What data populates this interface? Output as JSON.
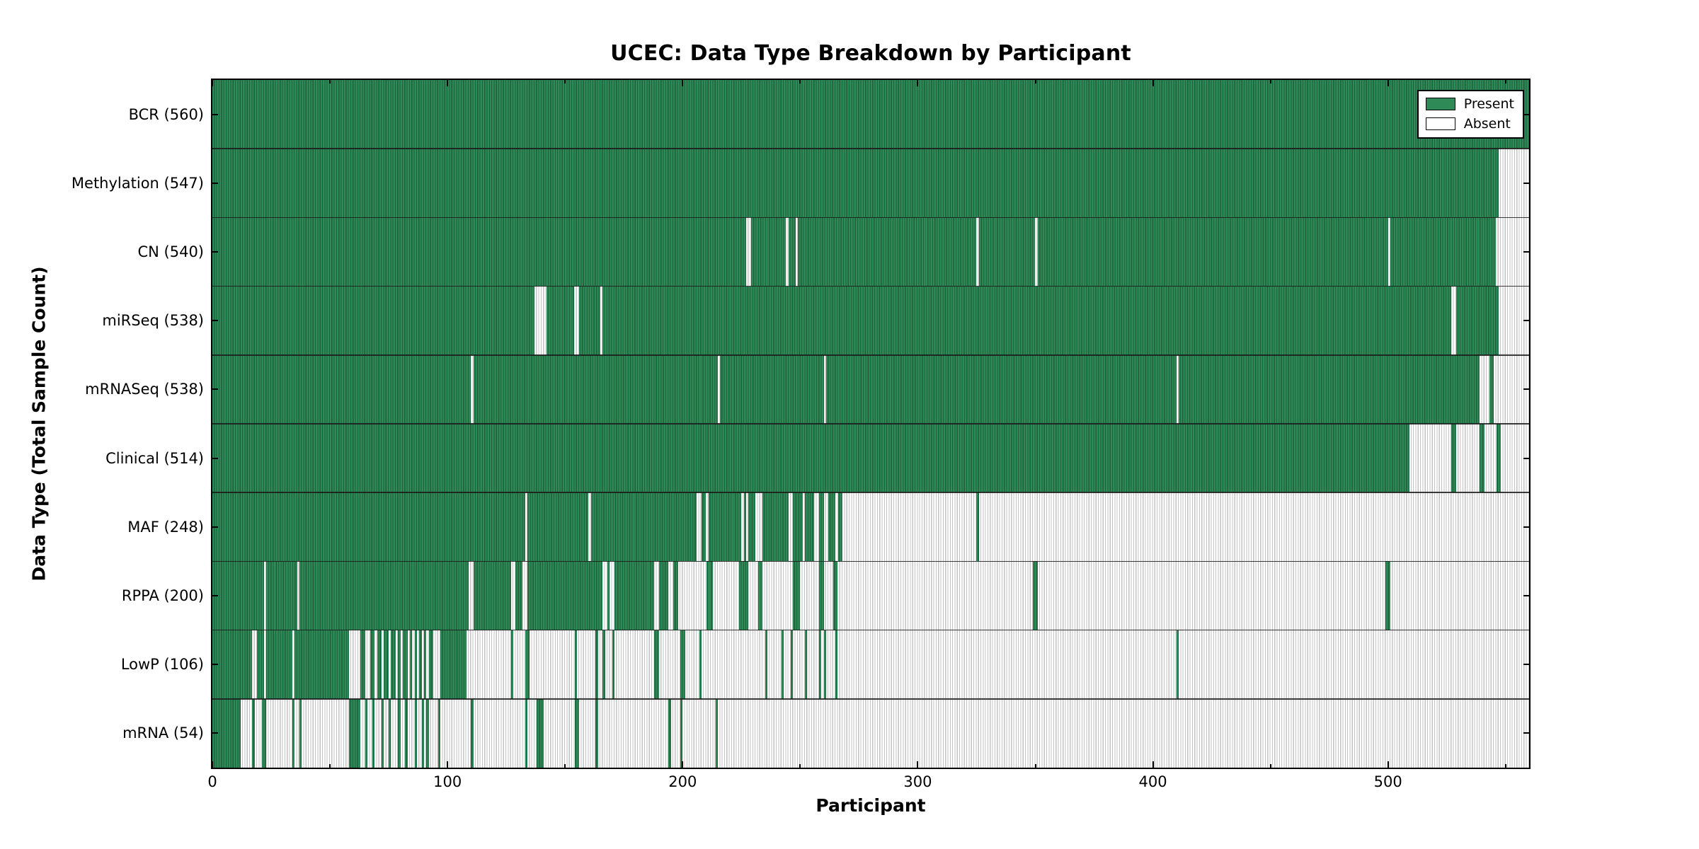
{
  "title": "UCEC: Data Type Breakdown by Participant",
  "legend": {
    "present_label": "Present",
    "absent_label": "Absent"
  },
  "axes": {
    "xlabel": "Participant",
    "ylabel": "Data Type (Total Sample Count)",
    "x_ticks": [
      0,
      100,
      200,
      300,
      400,
      500
    ],
    "x_minor_ticks": [
      50,
      150,
      250,
      350,
      450,
      550
    ],
    "x_max": 560
  },
  "colors": {
    "present": "#2e8b57",
    "present_stripe": "#1f5f3c",
    "absent": "#ffffff",
    "absent_stripe": "#c3c3c3",
    "separator": "#1a1a1a",
    "axis": "#000000",
    "text": "#000000"
  },
  "chart_data": {
    "type": "heatmap",
    "title": "UCEC: Data Type Breakdown by Participant",
    "xlabel": "Participant",
    "ylabel": "Data Type (Total Sample Count)",
    "x_range": [
      0,
      560
    ],
    "x_ticks": [
      0,
      100,
      200,
      300,
      400,
      500
    ],
    "legend_entries": [
      "Present",
      "Absent"
    ],
    "legend_position": "upper right",
    "grid": false,
    "value_encoding": {
      "present": "green cell",
      "absent": "white cell"
    },
    "rows": [
      {
        "label": "BCR (560)",
        "name": "BCR",
        "total": 560,
        "present_runs": [
          [
            0,
            560
          ]
        ]
      },
      {
        "label": "Methylation (547)",
        "name": "Methylation",
        "total": 547,
        "present_runs": [
          [
            0,
            547
          ]
        ]
      },
      {
        "label": "CN (540)",
        "name": "CN",
        "total": 540,
        "present_runs": [
          [
            0,
            227
          ],
          [
            229,
            244
          ],
          [
            245,
            248
          ],
          [
            249,
            325
          ],
          [
            326,
            350
          ],
          [
            351,
            500
          ],
          [
            501,
            546
          ]
        ]
      },
      {
        "label": "miRSeq (538)",
        "name": "miRSeq",
        "total": 538,
        "present_runs": [
          [
            0,
            137
          ],
          [
            142,
            154
          ],
          [
            156,
            165
          ],
          [
            166,
            527
          ],
          [
            529,
            547
          ]
        ]
      },
      {
        "label": "mRNASeq (538)",
        "name": "mRNASeq",
        "total": 538,
        "present_runs": [
          [
            0,
            110
          ],
          [
            111,
            215
          ],
          [
            216,
            260
          ],
          [
            261,
            410
          ],
          [
            411,
            539
          ],
          [
            543,
            545
          ]
        ]
      },
      {
        "label": "Clinical (514)",
        "name": "Clinical",
        "total": 514,
        "present_runs": [
          [
            0,
            509
          ],
          [
            527,
            529
          ],
          [
            539,
            541
          ],
          [
            546,
            548
          ]
        ]
      },
      {
        "label": "MAF (248)",
        "name": "MAF",
        "total": 248,
        "present_runs": [
          [
            0,
            133
          ],
          [
            134,
            160
          ],
          [
            161,
            206
          ],
          [
            208,
            210
          ],
          [
            211,
            225
          ],
          [
            226,
            227
          ],
          [
            228,
            231
          ],
          [
            234,
            245
          ],
          [
            247,
            251
          ],
          [
            252,
            256
          ],
          [
            258,
            260
          ],
          [
            262,
            265
          ],
          [
            266,
            268
          ],
          [
            325,
            326
          ]
        ]
      },
      {
        "label": "RPPA (200)",
        "name": "RPPA",
        "total": 200,
        "present_runs": [
          [
            0,
            22
          ],
          [
            23,
            36
          ],
          [
            37,
            109
          ],
          [
            111,
            127
          ],
          [
            129,
            132
          ],
          [
            134,
            166
          ],
          [
            168,
            169
          ],
          [
            171,
            188
          ],
          [
            190,
            194
          ],
          [
            196,
            198
          ],
          [
            210,
            213
          ],
          [
            224,
            228
          ],
          [
            232,
            234
          ],
          [
            247,
            250
          ],
          [
            258,
            260
          ],
          [
            264,
            266
          ],
          [
            349,
            351
          ],
          [
            499,
            501
          ]
        ]
      },
      {
        "label": "LowP (106)",
        "name": "LowP",
        "total": 106,
        "present_runs": [
          [
            0,
            17
          ],
          [
            19,
            22
          ],
          [
            23,
            34
          ],
          [
            35,
            58
          ],
          [
            63,
            65
          ],
          [
            67,
            69
          ],
          [
            70,
            72
          ],
          [
            73,
            75
          ],
          [
            76,
            78
          ],
          [
            79,
            80
          ],
          [
            81,
            83
          ],
          [
            84,
            85
          ],
          [
            86,
            87
          ],
          [
            88,
            89
          ],
          [
            90,
            91
          ],
          [
            92,
            94
          ],
          [
            97,
            108
          ],
          [
            127,
            128
          ],
          [
            133,
            135
          ],
          [
            154,
            155
          ],
          [
            163,
            164
          ],
          [
            166,
            167
          ],
          [
            170,
            171
          ],
          [
            188,
            190
          ],
          [
            199,
            201
          ],
          [
            207,
            208
          ],
          [
            235,
            236
          ],
          [
            242,
            243
          ],
          [
            246,
            247
          ],
          [
            252,
            253
          ],
          [
            258,
            259
          ],
          [
            260,
            261
          ],
          [
            265,
            266
          ],
          [
            410,
            411
          ]
        ]
      },
      {
        "label": "mRNA (54)",
        "name": "mRNA",
        "total": 54,
        "present_runs": [
          [
            0,
            12
          ],
          [
            17,
            18
          ],
          [
            21,
            23
          ],
          [
            34,
            35
          ],
          [
            37,
            38
          ],
          [
            58,
            63
          ],
          [
            65,
            66
          ],
          [
            68,
            69
          ],
          [
            72,
            73
          ],
          [
            75,
            76
          ],
          [
            79,
            80
          ],
          [
            82,
            83
          ],
          [
            86,
            87
          ],
          [
            89,
            90
          ],
          [
            91,
            92
          ],
          [
            96,
            97
          ],
          [
            110,
            111
          ],
          [
            133,
            134
          ],
          [
            138,
            141
          ],
          [
            154,
            156
          ],
          [
            163,
            164
          ],
          [
            194,
            195
          ],
          [
            199,
            200
          ],
          [
            214,
            215
          ]
        ]
      }
    ]
  }
}
